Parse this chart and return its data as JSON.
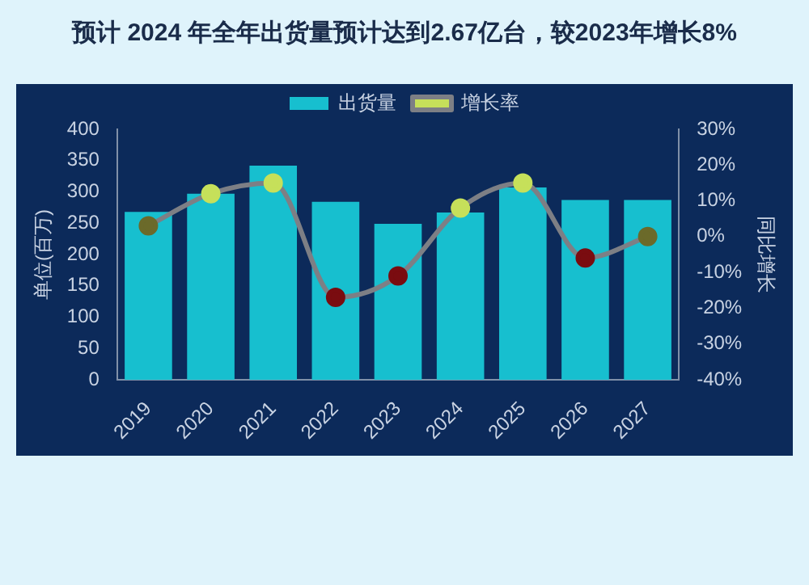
{
  "chart_data": {
    "type": "bar",
    "title": "预计 2024 年全年出货量预计达到2.67亿台，较2023年增长8%",
    "ylabel": "单位(百万)",
    "y2label": "同比增长",
    "categories": [
      "2019",
      "2020",
      "2021",
      "2022",
      "2023",
      "2024",
      "2025",
      "2026",
      "2027"
    ],
    "series": [
      {
        "name": "出货量",
        "color": "#17bfcf",
        "values": [
          268,
          297,
          342,
          284,
          249,
          267,
          307,
          287,
          287
        ]
      },
      {
        "name": "增长率",
        "type": "line",
        "axis": "y2",
        "color": "#7d7f85",
        "colors": [
          "#6b6a2a",
          "#c6e05a",
          "#c6e05a",
          "#7a0c10",
          "#7a0c10",
          "#c6e05a",
          "#c6e05a",
          "#7a0c10",
          "#6b6a2a"
        ],
        "values": [
          3,
          12,
          15,
          -17,
          -11,
          8,
          15,
          -6,
          0
        ]
      }
    ],
    "ylim": [
      0,
      400
    ],
    "yticks": [
      0,
      50,
      100,
      150,
      200,
      250,
      300,
      350,
      400
    ],
    "y2lim": [
      -40,
      30
    ],
    "y2ticks": [
      {
        "value": -40,
        "label": "-40%"
      },
      {
        "value": -30,
        "label": "-30%"
      },
      {
        "value": -20,
        "label": "-20%"
      },
      {
        "value": -10,
        "label": "-10%"
      },
      {
        "value": 0,
        "label": "0%"
      },
      {
        "value": 10,
        "label": "10%"
      },
      {
        "value": 20,
        "label": "20%"
      },
      {
        "value": 30,
        "label": "30%"
      }
    ],
    "grid": false,
    "legend": "top",
    "marker": "circle"
  }
}
